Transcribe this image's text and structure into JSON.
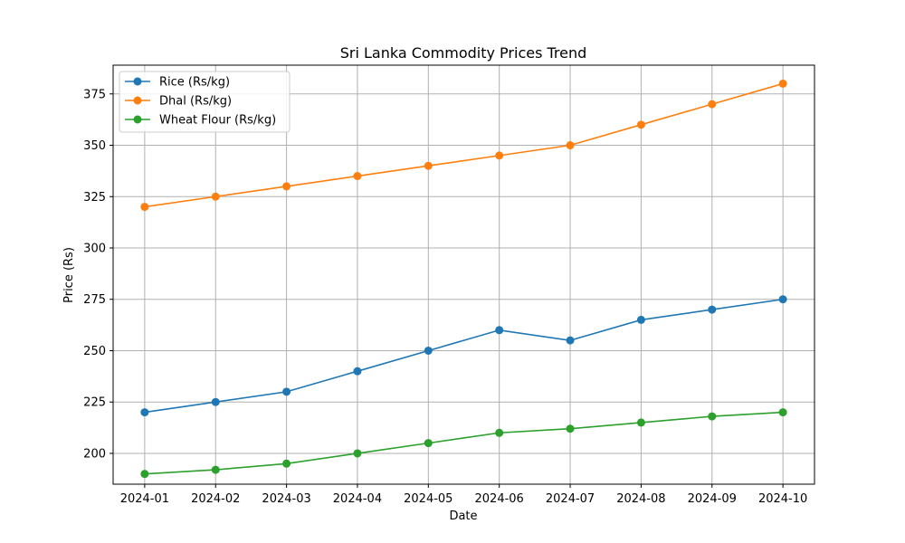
{
  "chart_data": {
    "type": "line",
    "title": "Sri Lanka Commodity Prices Trend",
    "xlabel": "Date",
    "ylabel": "Price (Rs)",
    "x": [
      "2024-01",
      "2024-02",
      "2024-03",
      "2024-04",
      "2024-05",
      "2024-06",
      "2024-07",
      "2024-08",
      "2024-09",
      "2024-10"
    ],
    "ylim": [
      185,
      389
    ],
    "yticks": [
      200,
      225,
      250,
      275,
      300,
      325,
      350,
      375
    ],
    "grid": true,
    "legend_position": "top-left",
    "series": [
      {
        "name": "Rice (Rs/kg)",
        "color": "#1f77b4",
        "values": [
          220,
          225,
          230,
          240,
          250,
          260,
          255,
          265,
          270,
          275
        ]
      },
      {
        "name": "Dhal (Rs/kg)",
        "color": "#ff7f0e",
        "values": [
          320,
          325,
          330,
          335,
          340,
          345,
          350,
          360,
          370,
          380
        ]
      },
      {
        "name": "Wheat Flour (Rs/kg)",
        "color": "#2ca02c",
        "values": [
          190,
          192,
          195,
          200,
          205,
          210,
          212,
          215,
          218,
          220
        ]
      }
    ]
  }
}
